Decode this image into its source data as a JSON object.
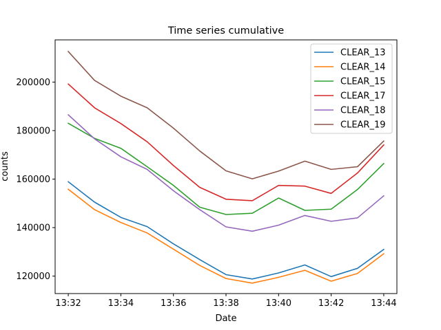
{
  "chart_data": {
    "type": "line",
    "title": "Time series cumulative",
    "xlabel": "Date",
    "ylabel": "counts",
    "x": [
      "13:32",
      "13:33",
      "13:34",
      "13:35",
      "13:36",
      "13:37",
      "13:38",
      "13:39",
      "13:40",
      "13:41",
      "13:42",
      "13:43",
      "13:44"
    ],
    "x_ticks": [
      "13:32",
      "13:34",
      "13:36",
      "13:38",
      "13:40",
      "13:42",
      "13:44"
    ],
    "y_ticks": [
      120000,
      140000,
      160000,
      180000,
      200000
    ],
    "y_tick_labels": [
      "120000",
      "140000",
      "160000",
      "180000",
      "200000"
    ],
    "xlim": [
      "13:31.5",
      "13:44.5"
    ],
    "ylim": [
      112800,
      217400
    ],
    "grid": false,
    "legend_position": "top-right",
    "series": [
      {
        "name": "CLEAR_13",
        "color": "#1f77b4",
        "values": [
          158900,
          150500,
          144200,
          140400,
          133300,
          126800,
          120600,
          118800,
          121300,
          124600,
          119800,
          123200,
          131000
        ]
      },
      {
        "name": "CLEAR_14",
        "color": "#ff7f0e",
        "values": [
          155800,
          147400,
          142100,
          137800,
          131100,
          124400,
          119000,
          117100,
          119500,
          122400,
          117900,
          121100,
          129200
        ]
      },
      {
        "name": "CLEAR_15",
        "color": "#2ca02c",
        "values": [
          183000,
          176800,
          172700,
          165100,
          157400,
          148400,
          145400,
          145900,
          152200,
          147100,
          147600,
          155700,
          166400
        ]
      },
      {
        "name": "CLEAR_17",
        "color": "#d62728",
        "values": [
          199200,
          189400,
          182900,
          175400,
          165600,
          156600,
          151700,
          151100,
          157400,
          157100,
          154100,
          162500,
          174100
        ]
      },
      {
        "name": "CLEAR_18",
        "color": "#9467bd",
        "values": [
          186500,
          176600,
          169200,
          164000,
          155200,
          147400,
          140300,
          138500,
          141000,
          145000,
          142600,
          144000,
          153100
        ]
      },
      {
        "name": "CLEAR_19",
        "color": "#8c564b",
        "values": [
          212600,
          200700,
          194200,
          189400,
          181000,
          171600,
          163400,
          160100,
          163300,
          167400,
          164000,
          165100,
          175700
        ]
      }
    ]
  }
}
